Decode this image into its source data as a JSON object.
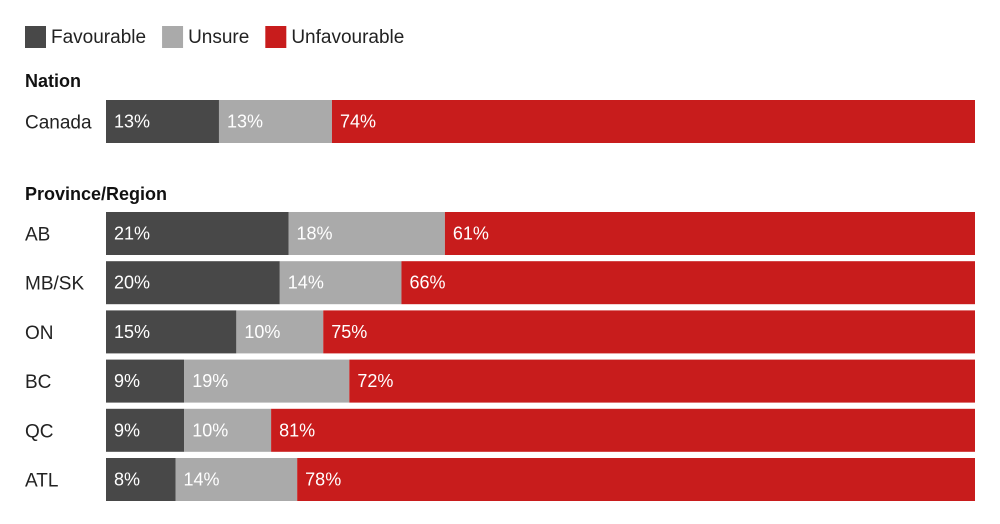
{
  "chart_data": {
    "type": "bar",
    "orientation": "horizontal",
    "stacked": true,
    "legend": [
      {
        "name": "Favourable",
        "color": "#484848"
      },
      {
        "name": "Unsure",
        "color": "#aaaaaa"
      },
      {
        "name": "Unfavourable",
        "color": "#c81c1c"
      }
    ],
    "groups": [
      {
        "title": "Nation",
        "rows": [
          {
            "label": "Canada",
            "values": [
              13,
              13,
              74
            ]
          }
        ]
      },
      {
        "title": "Province/Region",
        "rows": [
          {
            "label": "AB",
            "values": [
              21,
              18,
              61
            ]
          },
          {
            "label": "MB/SK",
            "values": [
              20,
              14,
              66
            ]
          },
          {
            "label": "ON",
            "values": [
              15,
              10,
              75
            ]
          },
          {
            "label": "BC",
            "values": [
              9,
              19,
              72
            ]
          },
          {
            "label": "QC",
            "values": [
              9,
              10,
              81
            ]
          },
          {
            "label": "ATL",
            "values": [
              8,
              14,
              78
            ]
          }
        ]
      }
    ],
    "value_suffix": "%",
    "xlim": [
      0,
      100
    ]
  }
}
